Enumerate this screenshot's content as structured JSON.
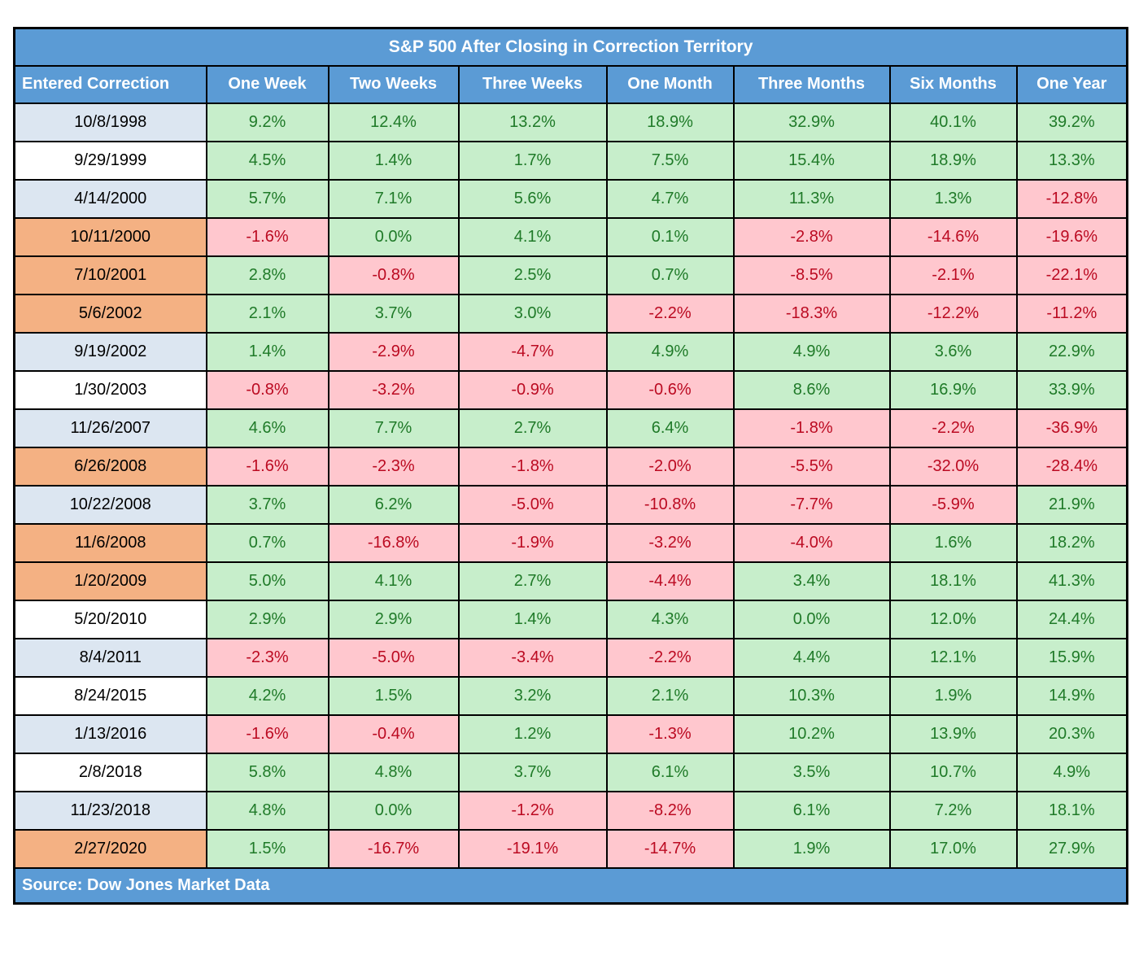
{
  "chart_data": {
    "type": "table",
    "title": "S&P 500 After Closing in Correction Territory",
    "columns": [
      "Entered Correction",
      "One Week",
      "Two Weeks",
      "Three Weeks",
      "One Month",
      "Three Months",
      "Six Months",
      "One Year"
    ],
    "rows": [
      {
        "date": "10/8/1998",
        "shade": "blue",
        "values": [
          "9.2%",
          "12.4%",
          "13.2%",
          "18.9%",
          "32.9%",
          "40.1%",
          "39.2%"
        ]
      },
      {
        "date": "9/29/1999",
        "shade": "white",
        "values": [
          "4.5%",
          "1.4%",
          "1.7%",
          "7.5%",
          "15.4%",
          "18.9%",
          "13.3%"
        ]
      },
      {
        "date": "4/14/2000",
        "shade": "blue",
        "values": [
          "5.7%",
          "7.1%",
          "5.6%",
          "4.7%",
          "11.3%",
          "1.3%",
          "-12.8%"
        ]
      },
      {
        "date": "10/11/2000",
        "shade": "orange",
        "values": [
          "-1.6%",
          "0.0%",
          "4.1%",
          "0.1%",
          "-2.8%",
          "-14.6%",
          "-19.6%"
        ]
      },
      {
        "date": "7/10/2001",
        "shade": "orange",
        "values": [
          "2.8%",
          "-0.8%",
          "2.5%",
          "0.7%",
          "-8.5%",
          "-2.1%",
          "-22.1%"
        ]
      },
      {
        "date": "5/6/2002",
        "shade": "orange",
        "values": [
          "2.1%",
          "3.7%",
          "3.0%",
          "-2.2%",
          "-18.3%",
          "-12.2%",
          "-11.2%"
        ]
      },
      {
        "date": "9/19/2002",
        "shade": "blue",
        "values": [
          "1.4%",
          "-2.9%",
          "-4.7%",
          "4.9%",
          "4.9%",
          "3.6%",
          "22.9%"
        ]
      },
      {
        "date": "1/30/2003",
        "shade": "white",
        "values": [
          "-0.8%",
          "-3.2%",
          "-0.9%",
          "-0.6%",
          "8.6%",
          "16.9%",
          "33.9%"
        ]
      },
      {
        "date": "11/26/2007",
        "shade": "blue",
        "values": [
          "4.6%",
          "7.7%",
          "2.7%",
          "6.4%",
          "-1.8%",
          "-2.2%",
          "-36.9%"
        ]
      },
      {
        "date": "6/26/2008",
        "shade": "orange",
        "values": [
          "-1.6%",
          "-2.3%",
          "-1.8%",
          "-2.0%",
          "-5.5%",
          "-32.0%",
          "-28.4%"
        ]
      },
      {
        "date": "10/22/2008",
        "shade": "blue",
        "values": [
          "3.7%",
          "6.2%",
          "-5.0%",
          "-10.8%",
          "-7.7%",
          "-5.9%",
          "21.9%"
        ]
      },
      {
        "date": "11/6/2008",
        "shade": "orange",
        "values": [
          "0.7%",
          "-16.8%",
          "-1.9%",
          "-3.2%",
          "-4.0%",
          "1.6%",
          "18.2%"
        ]
      },
      {
        "date": "1/20/2009",
        "shade": "orange",
        "values": [
          "5.0%",
          "4.1%",
          "2.7%",
          "-4.4%",
          "3.4%",
          "18.1%",
          "41.3%"
        ]
      },
      {
        "date": "5/20/2010",
        "shade": "white",
        "values": [
          "2.9%",
          "2.9%",
          "1.4%",
          "4.3%",
          "0.0%",
          "12.0%",
          "24.4%"
        ]
      },
      {
        "date": "8/4/2011",
        "shade": "blue",
        "values": [
          "-2.3%",
          "-5.0%",
          "-3.4%",
          "-2.2%",
          "4.4%",
          "12.1%",
          "15.9%"
        ]
      },
      {
        "date": "8/24/2015",
        "shade": "white",
        "values": [
          "4.2%",
          "1.5%",
          "3.2%",
          "2.1%",
          "10.3%",
          "1.9%",
          "14.9%"
        ]
      },
      {
        "date": "1/13/2016",
        "shade": "blue",
        "values": [
          "-1.6%",
          "-0.4%",
          "1.2%",
          "-1.3%",
          "10.2%",
          "13.9%",
          "20.3%"
        ]
      },
      {
        "date": "2/8/2018",
        "shade": "white",
        "values": [
          "5.8%",
          "4.8%",
          "3.7%",
          "6.1%",
          "3.5%",
          "10.7%",
          "4.9%"
        ]
      },
      {
        "date": "11/23/2018",
        "shade": "blue",
        "values": [
          "4.8%",
          "0.0%",
          "-1.2%",
          "-8.2%",
          "6.1%",
          "7.2%",
          "18.1%"
        ]
      },
      {
        "date": "2/27/2020",
        "shade": "orange",
        "values": [
          "1.5%",
          "-16.7%",
          "-19.1%",
          "-14.7%",
          "1.9%",
          "17.0%",
          "27.9%"
        ]
      }
    ],
    "source": "Source: Dow Jones Market Data",
    "legend_rule": "negative values shown red on pink, zero or positive shown green on light green"
  },
  "colors": {
    "header_blue": "#5b9bd5",
    "date_blue": "#dce6f1",
    "date_white": "#ffffff",
    "date_orange": "#f4b183",
    "pos_bg": "#c7eecb",
    "pos_text": "#1f7a28",
    "neg_bg": "#ffc7ce",
    "neg_text": "#bb0a21",
    "border": "#000000"
  }
}
